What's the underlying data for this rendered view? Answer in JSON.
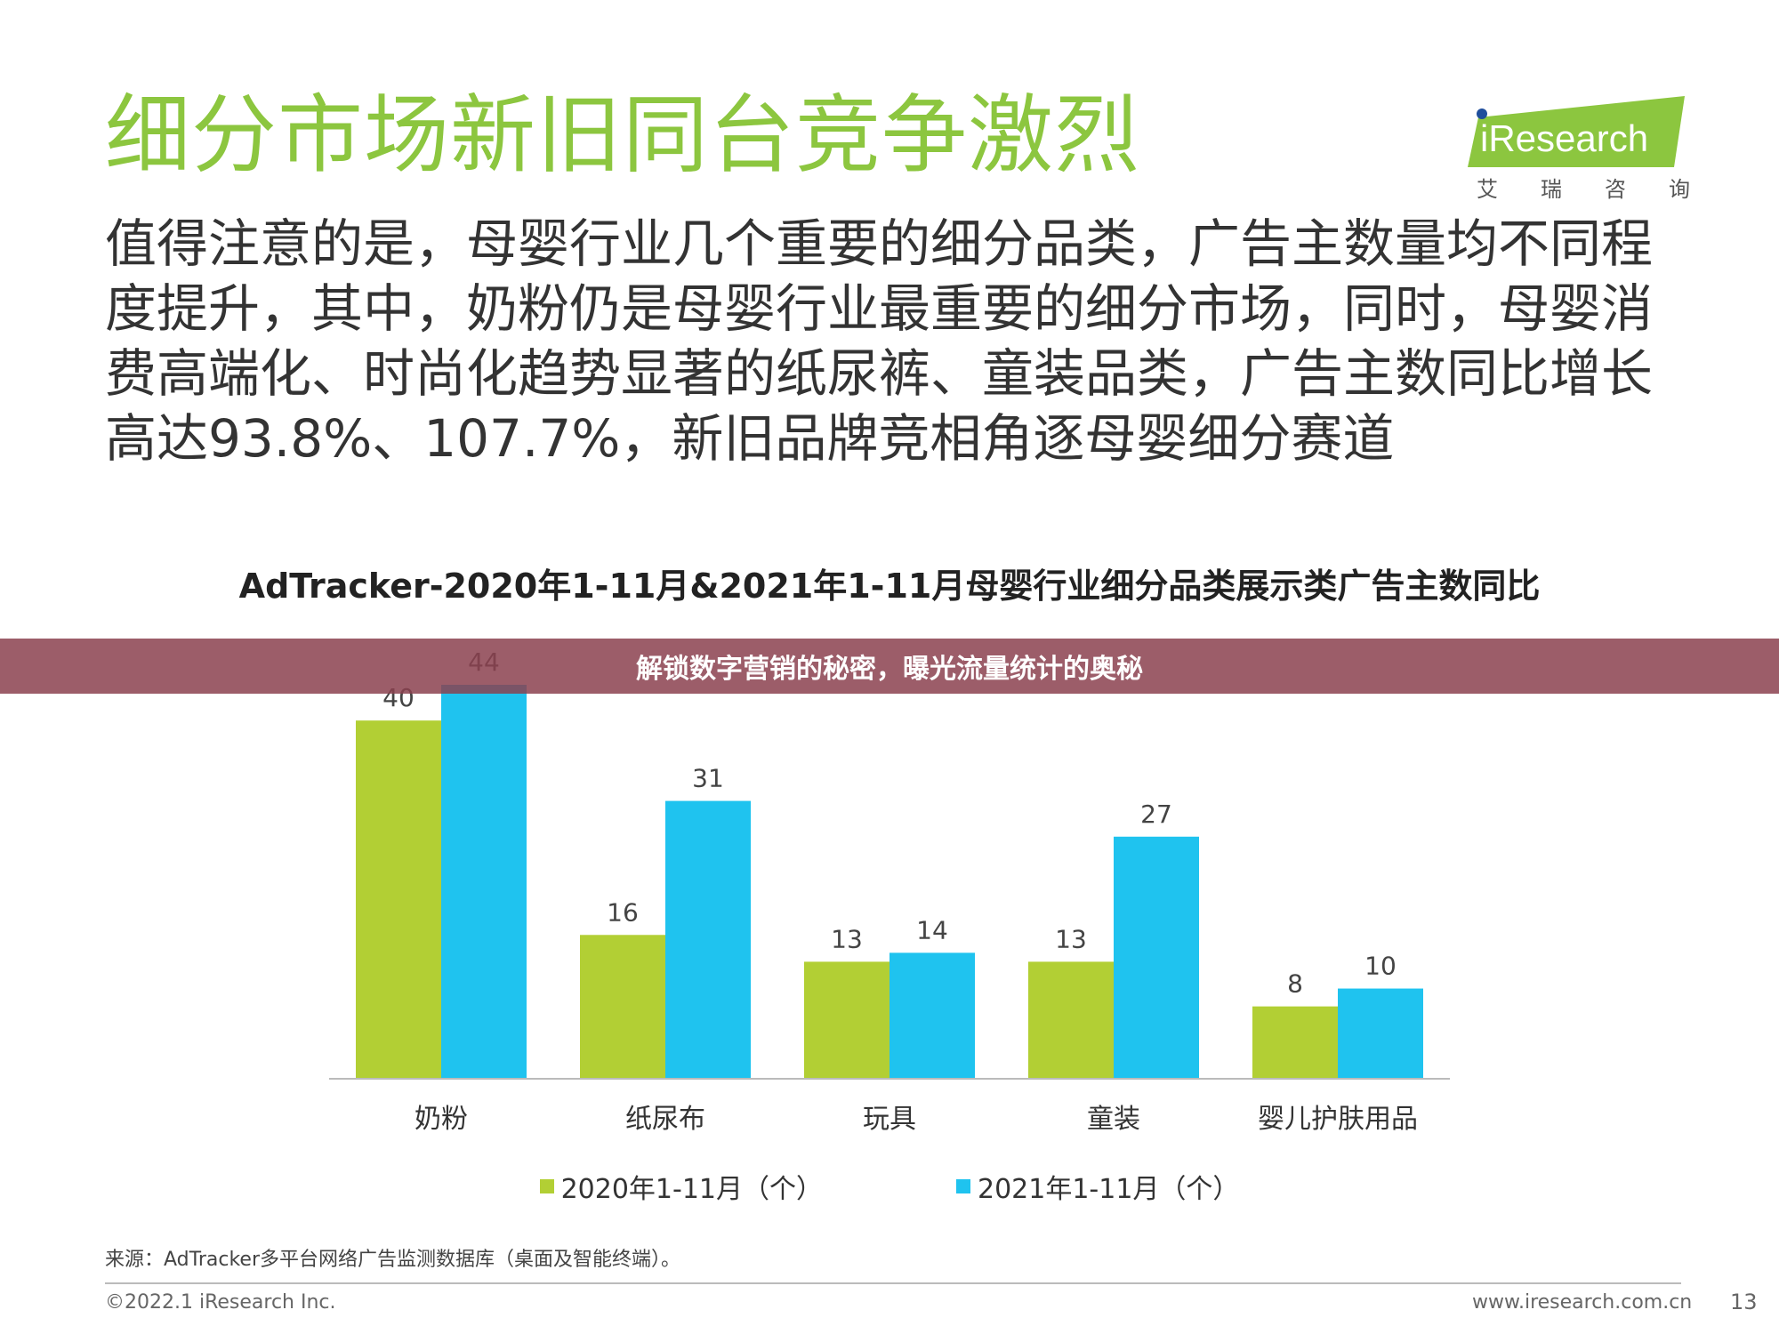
{
  "page": {
    "title": "细分市场新旧同台竞争激烈",
    "body": "值得注意的是，母婴行业几个重要的细分品类，广告主数量均不同程度提升，其中，奶粉仍是母婴行业最重要的细分市场，同时，母婴消费高端化、时尚化趋势显著的纸尿裤、童装品类，广告主数同比增长高达93.8%、107.7%，新旧品牌竞相角逐母婴细分赛道",
    "logo_text": "iResearch",
    "logo_sub": [
      "艾",
      "瑞",
      "咨",
      "询"
    ],
    "overlay_banner": "解锁数字营销的秘密，曝光流量统计的奥秘",
    "source": "来源：AdTracker多平台网络广告监测数据库（桌面及智能终端）。",
    "copyright": "©2022.1 iResearch Inc.",
    "website": "www.iresearch.com.cn",
    "page_number": "13"
  },
  "colors": {
    "title_green": "#8cc63f",
    "series_2020": "#b2cf34",
    "series_2021": "#1fc3ef",
    "banner": "#8b414f"
  },
  "chart_data": {
    "type": "bar",
    "title": "AdTracker-2020年1-11月&2021年1-11月母婴行业细分品类展示类广告主数同比",
    "categories": [
      "奶粉",
      "纸尿布",
      "玩具",
      "童装",
      "婴儿护肤用品"
    ],
    "series": [
      {
        "name": "2020年1-11月（个）",
        "values": [
          40,
          16,
          13,
          13,
          8
        ]
      },
      {
        "name": "2021年1-11月（个）",
        "values": [
          44,
          31,
          14,
          27,
          10
        ]
      }
    ],
    "ylim": [
      0,
      44
    ],
    "grid": false,
    "legend_position": "bottom"
  }
}
